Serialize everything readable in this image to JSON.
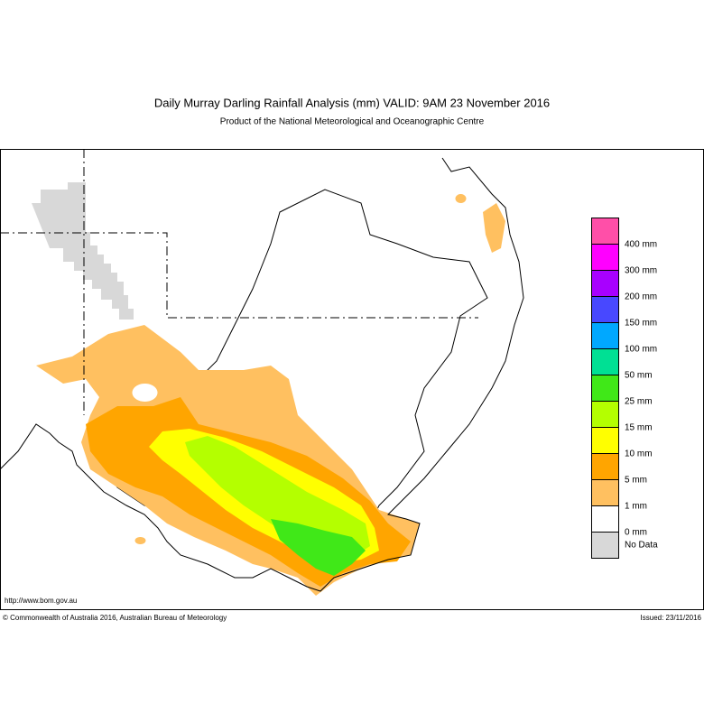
{
  "header": {
    "title": "Daily Murray Darling Rainfall Analysis (mm)  VALID: 9AM 23 November 2016",
    "subtitle": "Product of the National Meteorological and Oceanographic Centre"
  },
  "legend": {
    "colors": [
      "#ff4fa8",
      "#ff00ff",
      "#a800ff",
      "#4848ff",
      "#00a8ff",
      "#00e094",
      "#40e818",
      "#b4ff00",
      "#ffff00",
      "#ffa500",
      "#ffc060",
      "#ffffff",
      "#d8d8d8"
    ],
    "labels": [
      "400 mm",
      "300 mm",
      "200 mm",
      "150 mm",
      "100 mm",
      "50 mm",
      "25 mm",
      "15 mm",
      "10 mm",
      "5 mm",
      "1 mm",
      "0 mm"
    ],
    "no_data": "No Data"
  },
  "footer": {
    "url": "http://www.bom.gov.au",
    "copyright": "© Commonwealth of Australia 2016, Australian Bureau of Meteorology",
    "issued": "Issued: 23/11/2016"
  }
}
